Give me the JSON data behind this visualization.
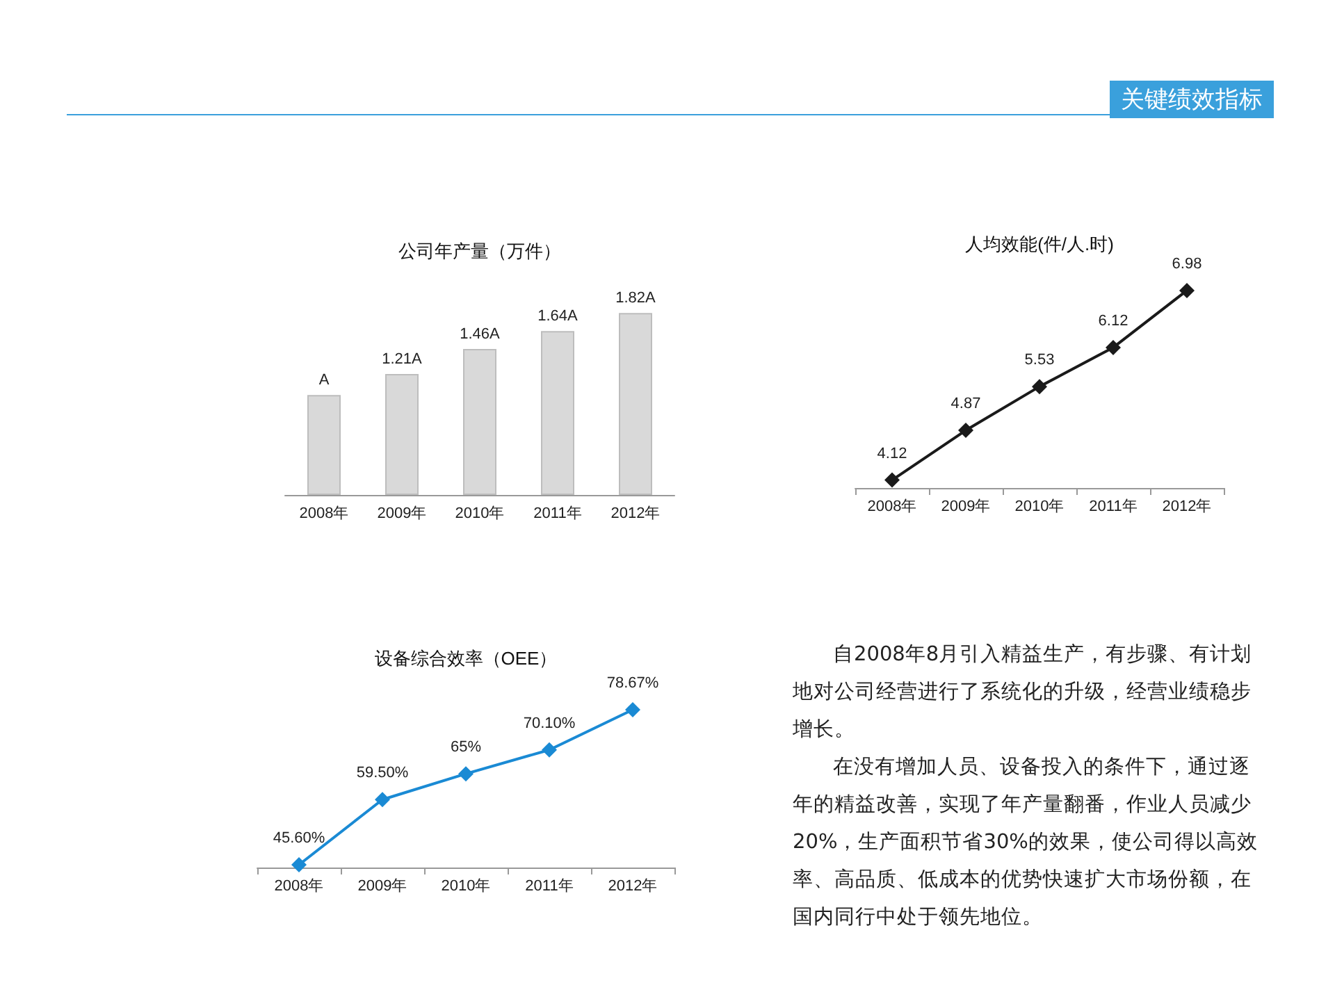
{
  "chart_data": [
    {
      "type": "bar",
      "title": "公司年产量（万件）",
      "categories": [
        "2008年",
        "2009年",
        "2010年",
        "2011年",
        "2012年"
      ],
      "values": [
        1,
        1.21,
        1.46,
        1.64,
        1.82
      ],
      "value_labels": [
        "A",
        "1.21A",
        "1.46A",
        "1.64A",
        "1.82A"
      ],
      "color": "#d9d9d9"
    },
    {
      "type": "line",
      "title": "人均效能(件/人.时)",
      "categories": [
        "2008年",
        "2009年",
        "2010年",
        "2011年",
        "2012年"
      ],
      "values": [
        4.12,
        4.87,
        5.53,
        6.12,
        6.98
      ],
      "data_labels": true,
      "color": "#1a1a1a",
      "marker": "diamond",
      "line_style": "solid"
    },
    {
      "type": "line",
      "title": "设备综合效率（OEE）",
      "categories": [
        "2008年",
        "2009年",
        "2010年",
        "2011年",
        "2012年"
      ],
      "values": [
        45.6,
        59.5,
        65,
        70.1,
        78.67
      ],
      "value_labels": [
        "45.60%",
        "59.50%",
        "65%",
        "70.10%",
        "78.67%"
      ],
      "color": "#1a8ad4",
      "marker": "diamond",
      "line_style": "solid"
    },
    {
      "type": "other",
      "title": "关键绩效指标",
      "annotations": [
        "自2008年8月引入精益生产，有步骤、有计划地对公司经营进行了系统化的升级，经营业绩稳步增长。",
        "在没有增加人员、设备投入的条件下，通过逐年的精益改善，实现了年产量翻番，作业人员减少20%，生产面积节省30%的效果，使公司得以高效率、高品质、低成本的优势快速扩大市场份额，在国内同行中处于领先地位。"
      ]
    }
  ]
}
